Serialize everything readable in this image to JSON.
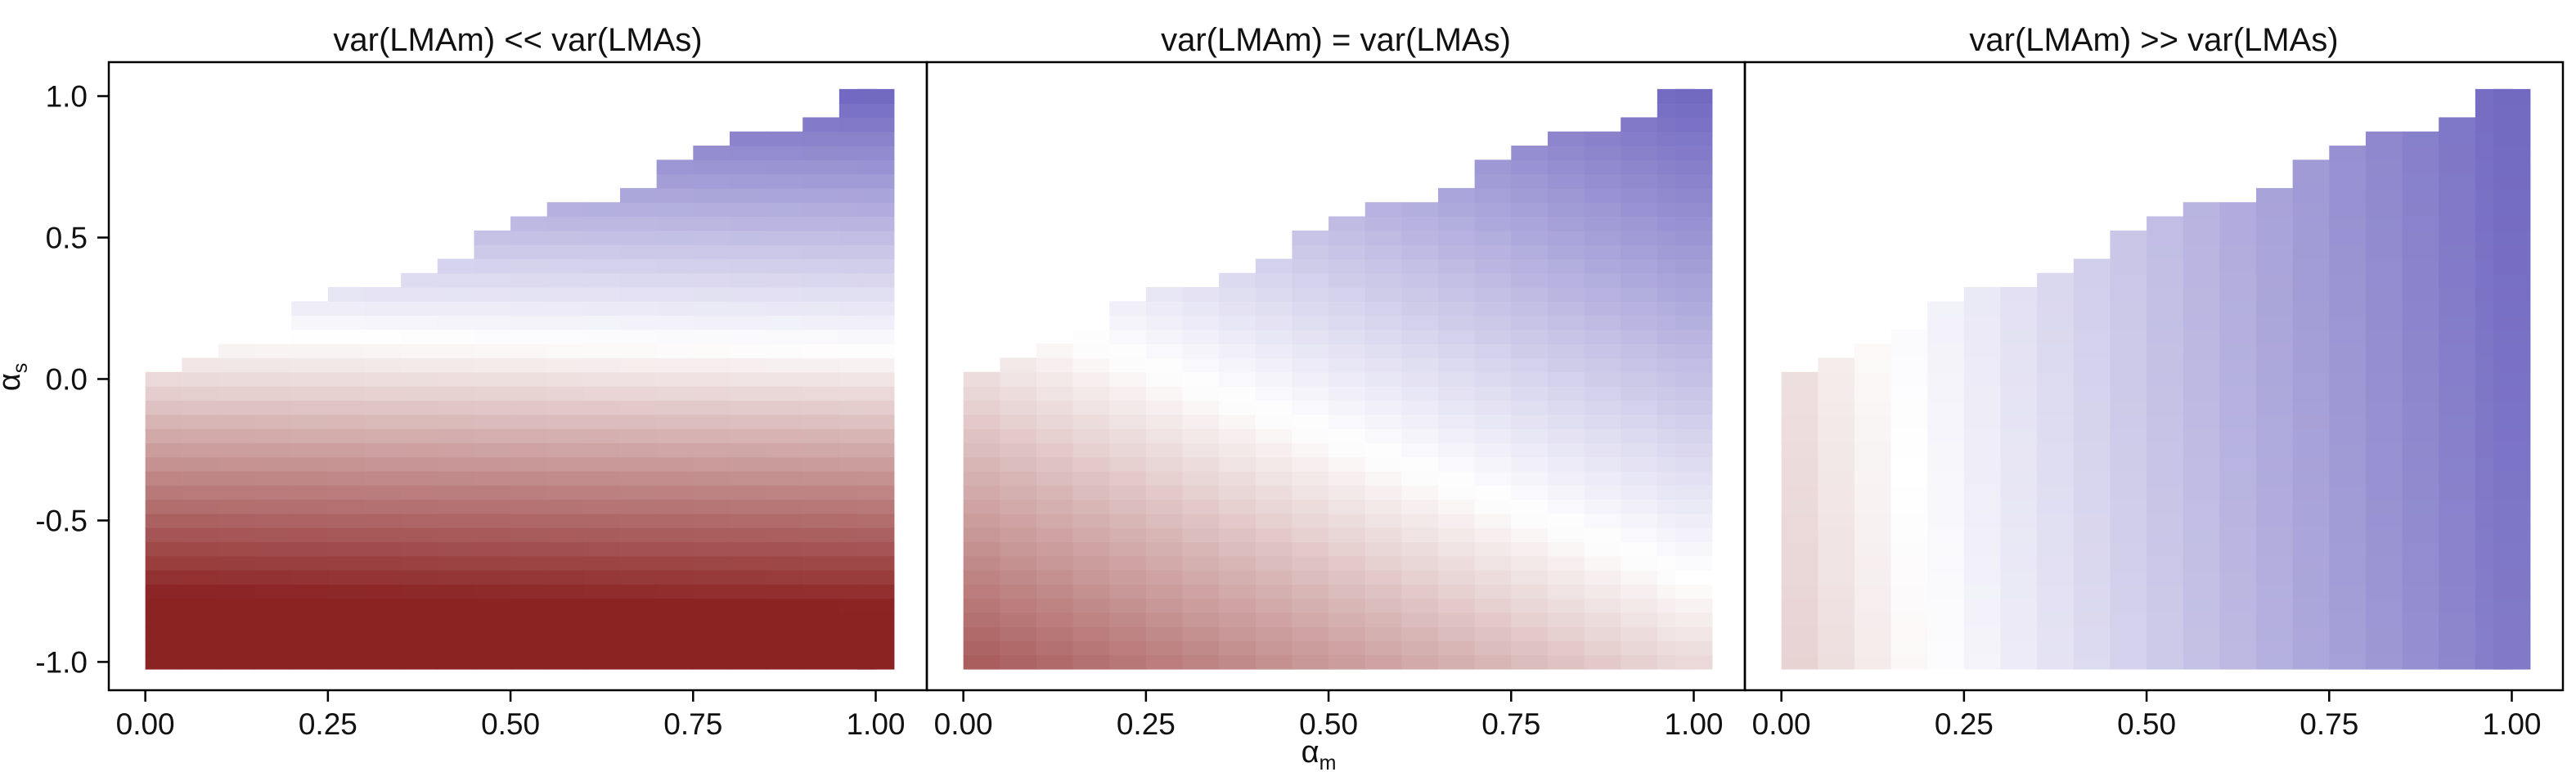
{
  "figure": {
    "xlabel": "α",
    "xlabel_sub": "m",
    "ylabel": "α",
    "ylabel_sub": "s"
  },
  "colors": {
    "negative_max": "#8B2323",
    "neutral": "#FFFFFF",
    "positive_max": "#6F66C0",
    "frame": "#000000"
  },
  "chart_data": [
    {
      "type": "heatmap",
      "title": "var(LMAm) << var(LMAs)",
      "x_ticks": [
        "0.00",
        "0.25",
        "0.50",
        "0.75",
        "1.00"
      ],
      "y_ticks": [
        "1.0",
        "0.5",
        "0.0",
        "-0.5",
        "-1.0"
      ],
      "xlim": [
        -0.05,
        1.07
      ],
      "ylim": [
        -1.1,
        1.12
      ],
      "weight_m": 0.05,
      "weight_s": 1.0,
      "grid": false
    },
    {
      "type": "heatmap",
      "title": "var(LMAm) = var(LMAs)",
      "x_ticks": [
        "0.00",
        "0.25",
        "0.50",
        "0.75",
        "1.00"
      ],
      "y_ticks": [],
      "xlim": [
        -0.05,
        1.07
      ],
      "ylim": [
        -1.1,
        1.12
      ],
      "weight_m": 1.0,
      "weight_s": 1.0,
      "grid": false
    },
    {
      "type": "heatmap",
      "title": "var(LMAm) >> var(LMAs)",
      "x_ticks": [
        "0.00",
        "0.25",
        "0.50",
        "0.75",
        "1.00"
      ],
      "y_ticks": [],
      "xlim": [
        -0.05,
        1.07
      ],
      "ylim": [
        -1.1,
        1.12
      ],
      "weight_m": 1.0,
      "weight_s": 0.05,
      "grid": false
    }
  ],
  "shared_grid": {
    "alpha_m": [
      0.025,
      0.075,
      0.125,
      0.175,
      0.225,
      0.275,
      0.325,
      0.375,
      0.425,
      0.475,
      0.525,
      0.575,
      0.625,
      0.675,
      0.725,
      0.775,
      0.825,
      0.875,
      0.925,
      0.975,
      1.0
    ],
    "alpha_s_max": [
      0.0,
      0.05,
      0.1,
      0.15,
      0.25,
      0.3,
      0.3,
      0.35,
      0.4,
      0.5,
      0.55,
      0.6,
      0.6,
      0.65,
      0.75,
      0.8,
      0.85,
      0.85,
      0.9,
      1.0,
      1.0
    ],
    "alpha_s_min": -1.0,
    "alpha_s_step": 0.05
  }
}
